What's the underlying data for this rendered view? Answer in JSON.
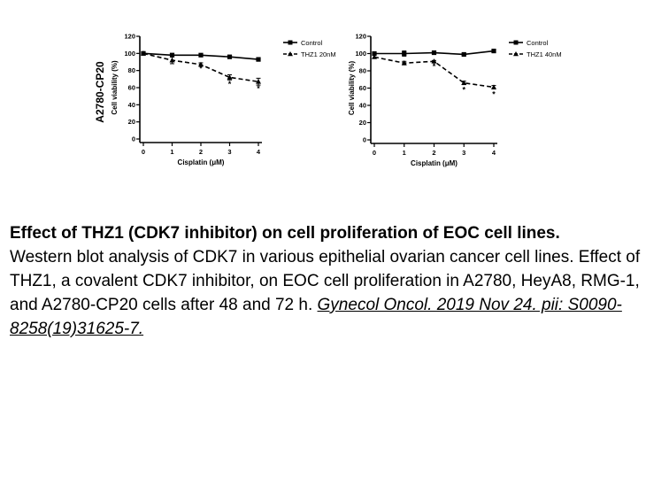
{
  "chart_data": [
    {
      "type": "line",
      "row_label": "A2780-CP20",
      "ylabel": "Cell viability (%)",
      "xlabel": "Cisplatin (μM)",
      "x": [
        0,
        1,
        2,
        3,
        4
      ],
      "xticks": [
        "0",
        "1",
        "2",
        "3",
        "4"
      ],
      "yticks": [
        "0",
        "20",
        "40",
        "60",
        "80",
        "100",
        "120"
      ],
      "xlim": [
        0,
        4
      ],
      "ylim": [
        0,
        120
      ],
      "legend_position": "top-right",
      "series": [
        {
          "name": "Control",
          "values": [
            100,
            98,
            98,
            96,
            93
          ],
          "errors": [
            0,
            2,
            1,
            1,
            1
          ],
          "style": "solid",
          "marker": "square"
        },
        {
          "name": "THZ1 20nM",
          "values": [
            100,
            92,
            87,
            72,
            67
          ],
          "errors": [
            0,
            4,
            2,
            3,
            4
          ],
          "style": "dashed",
          "marker": "triangle"
        }
      ],
      "significance": [
        {
          "x": 2,
          "y": 82,
          "mark": "*"
        },
        {
          "x": 3,
          "y": 64,
          "mark": "*"
        },
        {
          "x": 4,
          "y": 59,
          "mark": "*"
        }
      ]
    },
    {
      "type": "line",
      "row_label": "",
      "ylabel": "Cell viability (%)",
      "xlabel": "Cisplatin (μM)",
      "x": [
        0,
        1,
        2,
        3,
        4
      ],
      "xticks": [
        "0",
        "1",
        "2",
        "3",
        "4"
      ],
      "yticks": [
        "0",
        "20",
        "40",
        "60",
        "80",
        "100",
        "120"
      ],
      "xlim": [
        0,
        4
      ],
      "ylim": [
        0,
        120
      ],
      "legend_position": "top-right",
      "series": [
        {
          "name": "Control",
          "values": [
            100,
            100,
            101,
            99,
            103
          ],
          "errors": [
            0,
            3,
            1,
            1,
            1
          ],
          "style": "solid",
          "marker": "square"
        },
        {
          "name": "THZ1 40nM",
          "values": [
            96,
            89,
            91,
            66,
            61
          ],
          "errors": [
            0,
            2,
            1,
            2,
            2
          ],
          "style": "dashed",
          "marker": "triangle"
        }
      ],
      "significance": [
        {
          "x": 2,
          "y": 85,
          "mark": "*"
        },
        {
          "x": 3,
          "y": 58,
          "mark": "*"
        },
        {
          "x": 4,
          "y": 53,
          "mark": "*"
        }
      ]
    }
  ],
  "caption": {
    "title": "Effect of THZ1 (CDK7 inhibitor) on cell proliferation of EOC cell lines.",
    "body": "Western blot analysis of CDK7 in various epithelial ovarian cancer cell lines. Effect of THZ1, a covalent CDK7 inhibitor, on EOC cell proliferation in A2780, HeyA8, RMG-1, and A2780-CP20 cells after 48 and 72 h. ",
    "citation": "Gynecol Oncol. 2019 Nov 24. pii: S0090-8258(19)31625-7. "
  }
}
